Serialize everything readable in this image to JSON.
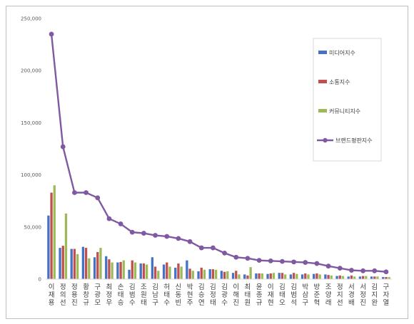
{
  "chart_data": {
    "type": "bar",
    "title": "",
    "xlabel": "",
    "ylabel": "",
    "ylim": [
      0,
      250000
    ],
    "yticks": [
      "0",
      "50,000",
      "100,000",
      "150,000",
      "200,000",
      "250,000"
    ],
    "grid": false,
    "legend_position": "right",
    "categories": [
      "이재용",
      "정의선",
      "정용진",
      "황창규",
      "구광모",
      "최정우",
      "손태승",
      "김범수",
      "조원태",
      "김남구",
      "허태수",
      "신동빈",
      "박현주",
      "김승연",
      "김정태",
      "김광수",
      "이해진",
      "최태원",
      "윤종규",
      "이재현",
      "김태오",
      "김범석",
      "박삼구",
      "방준혁",
      "조양래",
      "정지선",
      "서경배",
      "서정진",
      "김지완",
      "구자열"
    ],
    "series": [
      {
        "name": "미디어지수",
        "type": "bar",
        "color": "#4472c4",
        "values": [
          61000,
          30000,
          29000,
          31000,
          21000,
          22000,
          16000,
          9000,
          15000,
          21000,
          14000,
          11000,
          18000,
          7500,
          9500,
          8000,
          6000,
          4500,
          5500,
          5000,
          6000,
          4500,
          4500,
          5000,
          4500,
          3000,
          2500,
          2500,
          2500,
          2000
        ]
      },
      {
        "name": "소통지수",
        "type": "bar",
        "color": "#c0504d",
        "values": [
          83000,
          32000,
          29000,
          30000,
          26000,
          19000,
          16500,
          18000,
          15000,
          12000,
          16000,
          15000,
          10000,
          11000,
          9500,
          7000,
          8000,
          3500,
          5500,
          5500,
          6000,
          6000,
          5500,
          5500,
          4000,
          3500,
          3500,
          3000,
          2500,
          2000
        ]
      },
      {
        "name": "커뮤니티지수",
        "type": "bar",
        "color": "#9bbb59",
        "values": [
          90000,
          63000,
          24000,
          20000,
          30000,
          16000,
          18000,
          16000,
          14000,
          8000,
          12000,
          12000,
          8000,
          9000,
          9000,
          7500,
          4500,
          11500,
          5500,
          6000,
          4500,
          5000,
          4500,
          4500,
          3500,
          3000,
          2500,
          3000,
          2500,
          2000
        ]
      },
      {
        "name": "브랜드평판지수",
        "type": "line",
        "color": "#7f5aa2",
        "values": [
          235000,
          127000,
          83000,
          83000,
          78000,
          58000,
          53000,
          45000,
          44000,
          42000,
          41000,
          39000,
          36000,
          30000,
          30000,
          25000,
          21000,
          20000,
          18000,
          17500,
          17000,
          16500,
          16000,
          15000,
          12500,
          10500,
          8500,
          8000,
          8000,
          7000
        ]
      }
    ]
  }
}
